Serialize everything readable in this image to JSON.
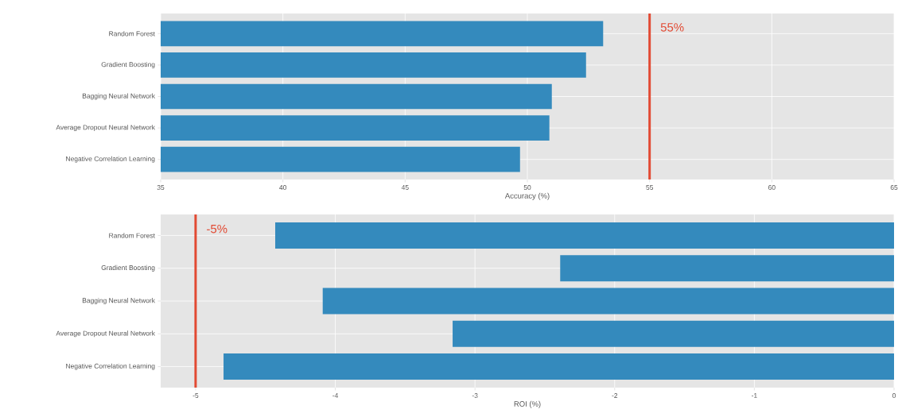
{
  "chart_data": [
    {
      "type": "bar",
      "orientation": "horizontal",
      "categories": [
        "Random Forest",
        "Gradient Boosting",
        "Bagging Neural Network",
        "Average Dropout Neural Network",
        "Negative Correlation Learning"
      ],
      "values": [
        53.1,
        52.4,
        51.0,
        50.9,
        49.7
      ],
      "color": "#348abd",
      "xlabel": "Accuracy (%)",
      "xlim": [
        35,
        65
      ],
      "xticks": [
        35,
        40,
        45,
        50,
        55,
        60,
        65
      ],
      "grid": true,
      "ref_lines": [
        {
          "axis": "x",
          "value": 55,
          "label": "55%",
          "color": "#e24a33"
        }
      ]
    },
    {
      "type": "bar",
      "orientation": "horizontal",
      "categories": [
        "Random Forest",
        "Gradient Boosting",
        "Bagging Neural Network",
        "Average Dropout Neural Network",
        "Negative Correlation Learning"
      ],
      "values": [
        -4.43,
        -2.39,
        -4.09,
        -3.16,
        -4.8
      ],
      "color": "#348abd",
      "xlabel": "ROI (%)",
      "xlim": [
        -5.25,
        0
      ],
      "xticks": [
        -5,
        -4,
        -3,
        -2,
        -1,
        0
      ],
      "grid": true,
      "ref_lines": [
        {
          "axis": "x",
          "value": -5,
          "label": "-5%",
          "color": "#e24a33"
        }
      ]
    }
  ]
}
